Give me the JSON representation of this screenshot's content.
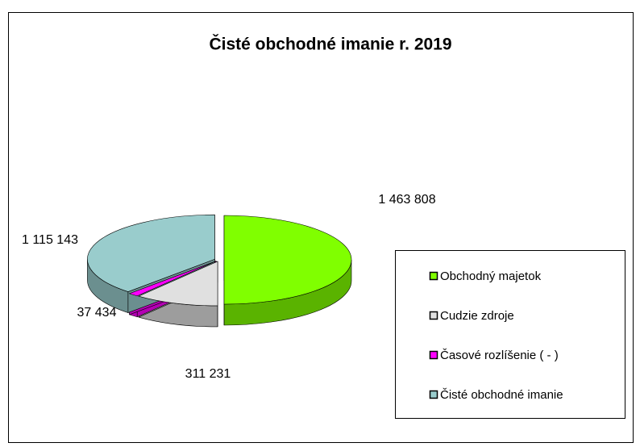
{
  "chart_data": {
    "type": "pie",
    "title": "Čisté obchodné imanie r. 2019",
    "categories": [
      "Obchodný majetok",
      "Cudzie zdroje",
      "Časové rozlíšenie  ( - )",
      "Čisté obchodné imanie"
    ],
    "values": [
      1463808,
      311231,
      37434,
      1115143
    ],
    "value_labels": [
      "1 463 808",
      "311 231",
      "37 434",
      "1 115 143"
    ],
    "colors": [
      "#80ff00",
      "#e0e0e0",
      "#ff00ff",
      "#99cccc"
    ]
  }
}
